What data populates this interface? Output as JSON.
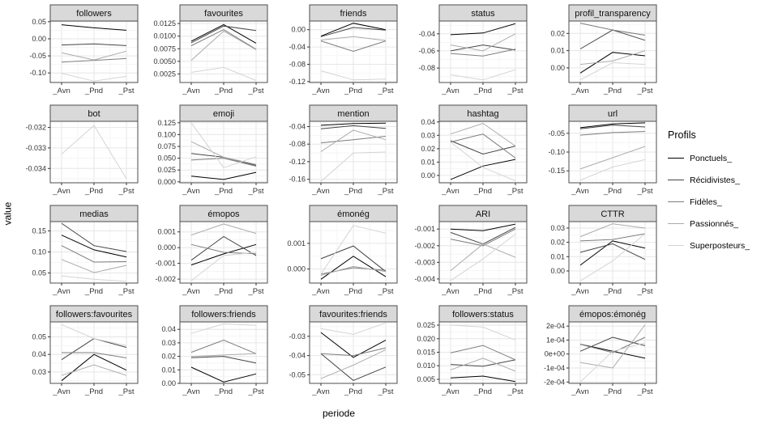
{
  "figure": {
    "y_axis_label": "value",
    "x_axis_label": "periode"
  },
  "legend": {
    "title": "Profils",
    "entries": [
      {
        "label": "Ponctuels_",
        "color": "#000000"
      },
      {
        "label": "Récidivistes_",
        "color": "#454545"
      },
      {
        "label": "Fidèles_",
        "color": "#7d7d7d"
      },
      {
        "label": "Passionnés_",
        "color": "#ababab"
      },
      {
        "label": "Superposteurs_",
        "color": "#d4d4d4"
      }
    ]
  },
  "chart_data": {
    "type": "line",
    "facets": true,
    "x_categories": [
      "_Avn",
      "_Pnd",
      "_Pst"
    ],
    "series_names": [
      "Ponctuels_",
      "Récidivistes_",
      "Fidèles_",
      "Passionnés_",
      "Superposteurs_"
    ],
    "series_colors": [
      "#000000",
      "#454545",
      "#7d7d7d",
      "#ababab",
      "#d4d4d4"
    ],
    "grid": "on",
    "legend_position": "right",
    "panels": [
      {
        "title": "followers",
        "yticks": [
          0.05,
          0.0,
          -0.05,
          -0.1
        ],
        "ytick_labels": [
          "0.05",
          "0.00",
          "-0.05",
          "-0.10"
        ],
        "ylim": [
          -0.128,
          0.052
        ],
        "series": [
          [
            0.041,
            0.032,
            0.025
          ],
          [
            -0.018,
            -0.015,
            -0.02
          ],
          [
            -0.068,
            -0.063,
            -0.058
          ],
          [
            -0.041,
            -0.062,
            -0.036
          ],
          [
            -0.101,
            -0.124,
            -0.11
          ]
        ]
      },
      {
        "title": "favourites",
        "yticks": [
          0.0125,
          0.01,
          0.0075,
          0.005,
          0.0025
        ],
        "ytick_labels": [
          "0.0125",
          "0.0100",
          "0.0075",
          "0.0050",
          "0.0025"
        ],
        "ylim": [
          0.0008,
          0.013
        ],
        "series": [
          [
            0.009,
            0.0123,
            0.0086
          ],
          [
            0.0087,
            0.012,
            0.0111
          ],
          [
            0.0081,
            0.0113,
            0.0074
          ],
          [
            0.0052,
            0.011,
            0.0073
          ],
          [
            0.0028,
            0.0038,
            0.0012
          ]
        ]
      },
      {
        "title": "friends",
        "yticks": [
          0.0,
          -0.04,
          -0.08,
          -0.12
        ],
        "ytick_labels": [
          "0.00",
          "-0.04",
          "-0.08",
          "-0.12"
        ],
        "ylim": [
          -0.122,
          0.02
        ],
        "series": [
          [
            -0.015,
            0.015,
            0.0
          ],
          [
            -0.016,
            0.005,
            -0.001
          ],
          [
            -0.026,
            -0.05,
            -0.026
          ],
          [
            -0.024,
            -0.016,
            -0.025
          ],
          [
            -0.095,
            -0.116,
            -0.114
          ]
        ]
      },
      {
        "title": "status",
        "yticks": [
          -0.04,
          -0.06,
          -0.08
        ],
        "ytick_labels": [
          "-0.04",
          "-0.06",
          "-0.08"
        ],
        "ylim": [
          -0.097,
          -0.025
        ],
        "series": [
          [
            -0.041,
            -0.039,
            -0.028
          ],
          [
            -0.06,
            -0.053,
            -0.059
          ],
          [
            -0.063,
            -0.066,
            -0.058
          ],
          [
            -0.053,
            -0.06,
            -0.04
          ],
          [
            -0.088,
            -0.094,
            -0.082
          ]
        ]
      },
      {
        "title": "profil_transparency",
        "yticks": [
          0.02,
          0.01,
          0.0
        ],
        "ytick_labels": [
          "0.02",
          "0.01",
          "0.00"
        ],
        "ylim": [
          -0.0085,
          0.0272
        ],
        "series": [
          [
            -0.003,
            0.009,
            0.007
          ],
          [
            0.011,
            0.022,
            0.016
          ],
          [
            0.026,
            0.022,
            0.019
          ],
          [
            0.002,
            0.004,
            0.01
          ],
          [
            -0.007,
            0.003,
            0.002
          ]
        ]
      },
      {
        "title": "bot",
        "yticks": [
          -0.032,
          -0.033,
          -0.034
        ],
        "ytick_labels": [
          "-0.032",
          "-0.033",
          "-0.034"
        ],
        "ylim": [
          -0.0347,
          -0.0317
        ],
        "series": [
          null,
          null,
          null,
          null,
          [
            -0.0333,
            -0.0319,
            -0.0345
          ]
        ]
      },
      {
        "title": "emoji",
        "yticks": [
          0.125,
          0.1,
          0.075,
          0.05,
          0.025,
          0.0
        ],
        "ytick_labels": [
          "0.125",
          "0.100",
          "0.075",
          "0.050",
          "0.025",
          "0.000"
        ],
        "ylim": [
          -0.002,
          0.128
        ],
        "series": [
          [
            0.012,
            0.005,
            0.02
          ],
          [
            0.06,
            0.052,
            0.035
          ],
          [
            0.046,
            0.05,
            0.033
          ],
          [
            0.085,
            0.052,
            0.037
          ],
          [
            0.125,
            0.03,
            0.053
          ]
        ]
      },
      {
        "title": "mention",
        "yticks": [
          -0.04,
          -0.08,
          -0.12,
          -0.16
        ],
        "ytick_labels": [
          "-0.04",
          "-0.08",
          "-0.12",
          "-0.16"
        ],
        "ylim": [
          -0.168,
          -0.028
        ],
        "series": [
          [
            -0.037,
            -0.033,
            -0.032
          ],
          [
            -0.045,
            -0.038,
            -0.044
          ],
          [
            -0.077,
            -0.07,
            -0.062
          ],
          [
            -0.097,
            -0.048,
            -0.07
          ],
          [
            -0.165,
            -0.1,
            -0.098
          ]
        ]
      },
      {
        "title": "hashtag",
        "yticks": [
          0.04,
          0.03,
          0.02,
          0.01,
          0.0
        ],
        "ytick_labels": [
          "0.04",
          "0.03",
          "0.02",
          "0.01",
          "0.00"
        ],
        "ylim": [
          -0.0055,
          0.0405
        ],
        "series": [
          [
            -0.003,
            0.007,
            0.012
          ],
          [
            0.026,
            0.016,
            0.022
          ],
          [
            0.025,
            0.031,
            0.013
          ],
          [
            0.031,
            0.039,
            0.022
          ],
          [
            0.025,
            0.006,
            -0.004
          ]
        ]
      },
      {
        "title": "url",
        "yticks": [
          -0.05,
          -0.1,
          -0.15
        ],
        "ytick_labels": [
          "-0.05",
          "-0.10",
          "-0.15"
        ],
        "ylim": [
          -0.182,
          -0.018
        ],
        "series": [
          [
            -0.035,
            -0.025,
            -0.022
          ],
          [
            -0.038,
            -0.028,
            -0.033
          ],
          [
            -0.055,
            -0.048,
            -0.045
          ],
          [
            -0.145,
            -0.115,
            -0.085
          ],
          [
            -0.175,
            -0.14,
            -0.12
          ]
        ]
      },
      {
        "title": "medias",
        "yticks": [
          0.15,
          0.1,
          0.05
        ],
        "ytick_labels": [
          "0.15",
          "0.10",
          "0.05"
        ],
        "ylim": [
          0.026,
          0.172
        ],
        "series": [
          [
            0.14,
            0.105,
            0.088
          ],
          [
            0.168,
            0.115,
            0.101
          ],
          [
            0.115,
            0.076,
            0.077
          ],
          [
            0.082,
            0.051,
            0.068
          ],
          [
            0.043,
            0.035,
            0.03
          ]
        ]
      },
      {
        "title": "émopos",
        "yticks": [
          0.001,
          0.0,
          -0.001,
          -0.002
        ],
        "ytick_labels": [
          "0.001",
          "0.000",
          "-0.001",
          "-0.002"
        ],
        "ylim": [
          -0.00225,
          0.00165
        ],
        "series": [
          [
            -0.0011,
            -0.0004,
            0.0002
          ],
          [
            -0.0008,
            0.0007,
            -0.0005
          ],
          [
            0.0002,
            -0.0003,
            -0.0004
          ],
          [
            0.0008,
            0.0015,
            0.0009
          ],
          [
            -0.0021,
            -0.0005,
            -0.0003
          ]
        ]
      },
      {
        "title": "émonég",
        "yticks": [
          0.001,
          0.0
        ],
        "ytick_labels": [
          "0.001",
          "0.000"
        ],
        "ylim": [
          -0.00055,
          0.00185
        ],
        "series": [
          [
            -0.0004,
            0.0005,
            -0.0003
          ],
          [
            0.0004,
            0.0009,
            -0.0001
          ],
          [
            -0.0002,
            5e-05,
            -5e-05
          ],
          [
            -0.00025,
            0.0001,
            -0.0001
          ],
          [
            -0.0002,
            0.0017,
            0.0014
          ]
        ]
      },
      {
        "title": "ARI",
        "yticks": [
          -0.001,
          -0.002,
          -0.003,
          -0.004
        ],
        "ytick_labels": [
          "-0.001",
          "-0.002",
          "-0.003",
          "-0.004"
        ],
        "ylim": [
          -0.00425,
          -0.00055
        ],
        "series": [
          [
            -0.001,
            -0.0011,
            -0.0007
          ],
          [
            -0.0012,
            -0.0019,
            -0.0009
          ],
          [
            -0.0016,
            -0.002,
            -0.001
          ],
          [
            -0.0035,
            -0.0019,
            -0.0027
          ],
          [
            -0.0041,
            -0.0028,
            -0.0013
          ]
        ]
      },
      {
        "title": "CTTR",
        "yticks": [
          0.03,
          0.02,
          0.01,
          0.0
        ],
        "ytick_labels": [
          "0.03",
          "0.02",
          "0.01",
          "0.00"
        ],
        "ylim": [
          -0.0085,
          0.0345
        ],
        "series": [
          [
            0.004,
            0.021,
            0.016
          ],
          [
            0.013,
            0.019,
            0.008
          ],
          [
            0.021,
            0.022,
            0.026
          ],
          [
            0.024,
            0.033,
            0.03
          ],
          [
            -0.007,
            0.007,
            0.026
          ]
        ]
      },
      {
        "title": "followers:favourites",
        "yticks": [
          0.05,
          0.04,
          0.03
        ],
        "ytick_labels": [
          "0.05",
          "0.04",
          "0.03"
        ],
        "ylim": [
          0.0235,
          0.0585
        ],
        "series": [
          [
            0.025,
            0.04,
            0.031
          ],
          [
            0.037,
            0.049,
            0.044
          ],
          [
            0.041,
            0.041,
            0.038
          ],
          [
            0.028,
            0.034,
            0.028
          ],
          [
            0.057,
            0.049,
            0.045
          ]
        ]
      },
      {
        "title": "followers:friends",
        "yticks": [
          0.04,
          0.03,
          0.02,
          0.01,
          0.0
        ],
        "ytick_labels": [
          "0.04",
          "0.03",
          "0.02",
          "0.01",
          "0.00"
        ],
        "ylim": [
          0.0,
          0.0455
        ],
        "series": [
          [
            0.012,
            0.001,
            0.007
          ],
          [
            0.019,
            0.02,
            0.015
          ],
          [
            0.023,
            0.032,
            0.022
          ],
          [
            0.02,
            0.021,
            0.022
          ],
          [
            0.037,
            0.044,
            0.043
          ]
        ]
      },
      {
        "title": "favourites:friends",
        "yticks": [
          -0.03,
          -0.04,
          -0.05
        ],
        "ytick_labels": [
          "-0.03",
          "-0.04",
          "-0.05"
        ],
        "ylim": [
          -0.0545,
          -0.0225
        ],
        "series": [
          [
            -0.028,
            -0.041,
            -0.032
          ],
          [
            -0.039,
            -0.053,
            -0.046
          ],
          [
            -0.039,
            -0.04,
            -0.036
          ],
          [
            -0.052,
            -0.045,
            -0.037
          ],
          [
            -0.026,
            -0.029,
            -0.023
          ]
        ]
      },
      {
        "title": "followers:status",
        "yticks": [
          0.025,
          0.02,
          0.015,
          0.01,
          0.005
        ],
        "ytick_labels": [
          "0.025",
          "0.020",
          "0.015",
          "0.010",
          "0.005"
        ],
        "ylim": [
          0.0035,
          0.0262
        ],
        "series": [
          [
            0.0055,
            0.0062,
            0.0042
          ],
          [
            0.0105,
            0.0098,
            0.0122
          ],
          [
            0.0148,
            0.0175,
            0.0122
          ],
          [
            0.0085,
            0.0128,
            0.008
          ],
          [
            0.025,
            0.0243,
            0.0195
          ]
        ]
      },
      {
        "title": "émopos:émonég",
        "yticks": [
          0.0002,
          0.0001,
          0.0,
          -0.0001,
          -0.0002
        ],
        "ytick_labels": [
          "2e-04",
          "1e-04",
          "0e+00",
          "-1e-04",
          "-2e-04"
        ],
        "ylim": [
          -0.00021,
          0.00023
        ],
        "series": [
          [
            7e-05,
            2e-05,
            -3e-05
          ],
          [
            2e-05,
            0.00012,
            6e-05
          ],
          [
            7e-05,
            1e-05,
            0.00012
          ],
          [
            -6e-05,
            -0.0001,
            0.00021
          ],
          [
            -0.0002,
            2e-05,
            8e-05
          ]
        ]
      }
    ]
  }
}
